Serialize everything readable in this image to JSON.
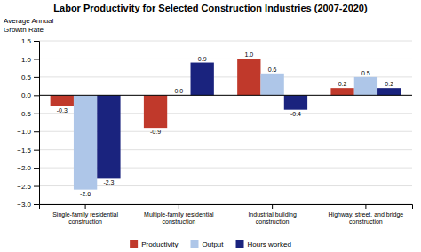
{
  "chart_data": {
    "type": "bar",
    "title": "Labor Productivity for Selected Construction Industries (2007-2020)",
    "ylabel": "Average Annual\nGrowth Rate",
    "categories": [
      "Single-family residential\nconstruction",
      "Multiple-family residential\nconstruction",
      "Industrial building\nconstruction",
      "Highway, street, and bridge\nconstruction"
    ],
    "series": [
      {
        "name": "Productivity",
        "color": "#c0392b",
        "values": [
          -0.3,
          -0.9,
          1.0,
          0.2
        ],
        "value_labels": [
          "-0.3",
          "-0.9",
          "1.0",
          "0.2"
        ]
      },
      {
        "name": "Output",
        "color": "#aec6e8",
        "values": [
          -2.6,
          0.0,
          0.6,
          0.5
        ],
        "value_labels": [
          "-2.6",
          "0.0",
          "0.6",
          "0.5"
        ]
      },
      {
        "name": "Hours worked",
        "color": "#1a237e",
        "values": [
          -2.3,
          0.9,
          -0.4,
          0.2
        ]
      }
    ],
    "ylim": [
      -3.0,
      1.5
    ],
    "yticks": [
      {
        "value": -3.0,
        "label": "−3.0"
      },
      {
        "value": -2.5,
        "label": "−2.5"
      },
      {
        "value": -2.0,
        "label": "−2.0"
      },
      {
        "value": -1.5,
        "label": "−1.5"
      },
      {
        "value": -1.0,
        "label": "−1.0"
      },
      {
        "value": -0.5,
        "label": "−0.5"
      },
      {
        "value": 0.0,
        "label": "0.0"
      },
      0.5,
      {
        "value": 1.0,
        "label": "1.0"
      },
      1.5
    ],
    "grid": true,
    "data_labels": true,
    "legend": "bottom"
  }
}
